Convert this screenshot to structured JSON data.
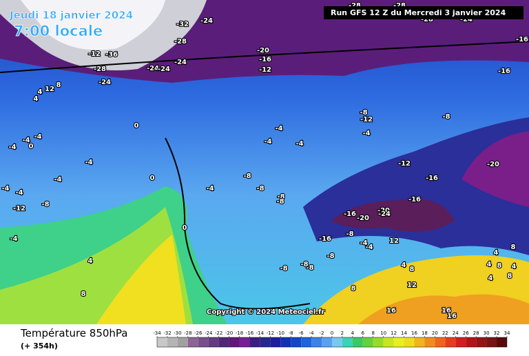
{
  "header": {
    "date": "Jeudi 18 janvier 2024",
    "time": "7:00 locale",
    "run": "Run GFS 12 Z du Mercredi 3 janvier 2024"
  },
  "footer": {
    "title": "Température 850hPa",
    "lead": "(+ 354h)",
    "copyright": "Copyright © 2024 Meteociel.fr"
  },
  "legend": {
    "ticks": [
      -34,
      -32,
      -30,
      -28,
      -26,
      -24,
      -22,
      -20,
      -18,
      -16,
      -14,
      -12,
      -10,
      -8,
      -6,
      -4,
      -2,
      0,
      2,
      4,
      6,
      8,
      10,
      12,
      14,
      16,
      18,
      20,
      22,
      24,
      26,
      28,
      30,
      32,
      34
    ]
  },
  "labels": [
    "-24",
    "-32",
    "-28",
    "-20",
    "-16",
    "-12",
    "-28",
    "-24",
    "-24",
    "-24",
    "-24",
    "-12",
    "-36",
    "-16",
    "-16",
    "-8",
    "-12",
    "-8",
    "-4",
    "-4",
    "-4",
    "-4",
    "0",
    "0",
    "-4",
    "-4",
    "-4",
    "-4",
    "-4",
    "-4",
    "-4",
    "-12",
    "-8",
    "-4",
    "0",
    "-4",
    "-8",
    "-8",
    "-8",
    "-8",
    "-12",
    "-20",
    "-16",
    "-16",
    "-16",
    "-20",
    "-20",
    "-24",
    "-16",
    "-8",
    "-4",
    "-4",
    "12",
    "-8",
    "-8",
    "-8",
    "-8",
    "4",
    "8",
    "12",
    "8",
    "16",
    "16",
    "16",
    "0",
    "4",
    "8",
    "4",
    "8",
    "4",
    "8",
    "4",
    "8",
    "4",
    "4",
    "12",
    "8",
    "4",
    "-28",
    "-28",
    "-28",
    "-24"
  ]
}
